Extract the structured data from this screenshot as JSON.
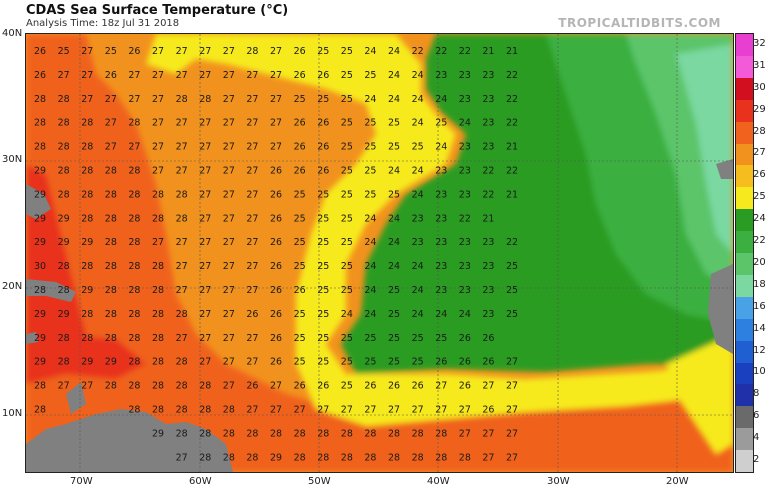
{
  "header": {
    "title": "CDAS Sea Surface Temperature (°C)",
    "subtitle": "Analysis Time: 18z Jul 31 2018",
    "brand": "TROPICALTIDBITS.COM"
  },
  "axes": {
    "lat_labels": [
      "40N",
      "30N",
      "20N",
      "10N"
    ],
    "lon_labels": [
      "70W",
      "60W",
      "50W",
      "40W",
      "30W",
      "20W"
    ]
  },
  "colorbar": {
    "labels": [
      "32",
      "31",
      "30",
      "29",
      "28",
      "27",
      "26",
      "25",
      "24",
      "22",
      "20",
      "18",
      "16",
      "14",
      "12",
      "10",
      "8",
      "6",
      "4",
      "2"
    ],
    "colors": [
      "#e83fd0",
      "#f25ad8",
      "#d10f1e",
      "#e8321e",
      "#f0621e",
      "#f2921e",
      "#f5be1e",
      "#f6ea1e",
      "#2a9c24",
      "#3bb040",
      "#5cc56a",
      "#7ad8a0",
      "#4aa2e6",
      "#2d7fe0",
      "#1f5fd2",
      "#1a3fbf",
      "#2030a8",
      "#6a6a6a",
      "#9b9b9b",
      "#cfcfcf"
    ]
  },
  "temperature_rows": [
    [
      "26",
      "25",
      "27",
      "25",
      "26",
      "27",
      "27",
      "27",
      "27",
      "28",
      "27",
      "26",
      "25",
      "25",
      "24",
      "24",
      "22",
      "22",
      "22",
      "21",
      "21"
    ],
    [
      "26",
      "27",
      "27",
      "26",
      "27",
      "27",
      "27",
      "27",
      "27",
      "27",
      "27",
      "26",
      "26",
      "25",
      "25",
      "24",
      "24",
      "23",
      "23",
      "23",
      "22"
    ],
    [
      "28",
      "28",
      "27",
      "27",
      "27",
      "27",
      "28",
      "28",
      "27",
      "27",
      "27",
      "25",
      "25",
      "25",
      "24",
      "24",
      "24",
      "24",
      "23",
      "23",
      "22"
    ],
    [
      "28",
      "28",
      "28",
      "27",
      "28",
      "27",
      "27",
      "27",
      "27",
      "27",
      "27",
      "26",
      "26",
      "25",
      "25",
      "25",
      "24",
      "25",
      "24",
      "23",
      "22"
    ],
    [
      "28",
      "28",
      "28",
      "27",
      "27",
      "27",
      "27",
      "27",
      "27",
      "27",
      "27",
      "26",
      "26",
      "25",
      "25",
      "25",
      "25",
      "24",
      "23",
      "23",
      "21"
    ],
    [
      "29",
      "28",
      "28",
      "28",
      "28",
      "27",
      "27",
      "27",
      "27",
      "27",
      "26",
      "26",
      "26",
      "25",
      "25",
      "24",
      "24",
      "23",
      "23",
      "22",
      "22"
    ],
    [
      "29",
      "28",
      "28",
      "28",
      "28",
      "28",
      "28",
      "27",
      "27",
      "27",
      "26",
      "25",
      "25",
      "25",
      "25",
      "25",
      "24",
      "23",
      "23",
      "22",
      "21"
    ],
    [
      "29",
      "29",
      "28",
      "28",
      "28",
      "28",
      "28",
      "27",
      "27",
      "27",
      "26",
      "25",
      "25",
      "25",
      "24",
      "24",
      "23",
      "23",
      "22",
      "21",
      ""
    ],
    [
      "29",
      "29",
      "29",
      "28",
      "28",
      "27",
      "27",
      "27",
      "27",
      "27",
      "26",
      "25",
      "25",
      "25",
      "24",
      "24",
      "23",
      "23",
      "23",
      "23",
      "22"
    ],
    [
      "30",
      "28",
      "28",
      "28",
      "28",
      "28",
      "27",
      "27",
      "27",
      "27",
      "26",
      "25",
      "25",
      "25",
      "24",
      "24",
      "24",
      "23",
      "23",
      "23",
      "25"
    ],
    [
      "28",
      "28",
      "29",
      "28",
      "28",
      "28",
      "27",
      "27",
      "27",
      "27",
      "26",
      "26",
      "25",
      "25",
      "24",
      "25",
      "24",
      "23",
      "23",
      "23",
      "25"
    ],
    [
      "29",
      "29",
      "28",
      "28",
      "28",
      "28",
      "28",
      "27",
      "27",
      "26",
      "26",
      "25",
      "25",
      "24",
      "24",
      "25",
      "24",
      "24",
      "24",
      "23",
      "25"
    ],
    [
      "29",
      "28",
      "28",
      "28",
      "28",
      "28",
      "27",
      "27",
      "27",
      "27",
      "26",
      "25",
      "25",
      "25",
      "25",
      "25",
      "25",
      "25",
      "26",
      "26",
      ""
    ],
    [
      "29",
      "28",
      "29",
      "29",
      "28",
      "28",
      "28",
      "27",
      "27",
      "27",
      "26",
      "25",
      "25",
      "25",
      "25",
      "25",
      "25",
      "26",
      "26",
      "26",
      "27"
    ],
    [
      "28",
      "27",
      "27",
      "28",
      "28",
      "28",
      "28",
      "28",
      "27",
      "26",
      "27",
      "26",
      "26",
      "25",
      "26",
      "26",
      "26",
      "27",
      "26",
      "27",
      "27"
    ],
    [
      "28",
      "",
      "",
      "",
      "28",
      "28",
      "28",
      "28",
      "28",
      "27",
      "27",
      "27",
      "27",
      "27",
      "27",
      "27",
      "27",
      "27",
      "27",
      "26",
      "27"
    ],
    [
      "",
      "",
      "",
      "",
      "",
      "29",
      "28",
      "28",
      "28",
      "28",
      "28",
      "28",
      "28",
      "28",
      "28",
      "28",
      "28",
      "28",
      "27",
      "27",
      "27"
    ],
    [
      "",
      "",
      "",
      "",
      "",
      "",
      "27",
      "28",
      "28",
      "28",
      "29",
      "28",
      "28",
      "28",
      "28",
      "28",
      "28",
      "28",
      "28",
      "27",
      "27"
    ]
  ]
}
